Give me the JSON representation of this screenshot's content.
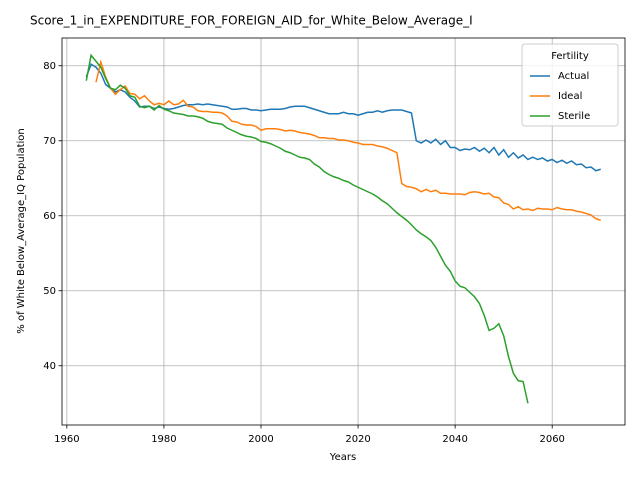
{
  "chart_data": {
    "type": "line",
    "title": "Score_1_in_EXPENDITURE_FOR_FOREIGN_AID_for_White_Below_Average_I",
    "xlabel": "Years",
    "ylabel": "% of White Below_Average_IQ Population",
    "legend_title": "Fertility",
    "legend": "upper right",
    "grid": true,
    "xlim": [
      1959,
      2075
    ],
    "ylim": [
      32.1,
      83.7
    ],
    "xticks": [
      1960,
      1980,
      2000,
      2020,
      2040,
      2060
    ],
    "yticks": [
      40,
      50,
      60,
      70,
      80
    ],
    "x": [
      1964,
      1965,
      1966,
      1967,
      1968,
      1969,
      1970,
      1971,
      1972,
      1973,
      1974,
      1975,
      1976,
      1977,
      1978,
      1979,
      1980,
      1981,
      1982,
      1983,
      1984,
      1985,
      1986,
      1987,
      1988,
      1989,
      1990,
      1991,
      1992,
      1993,
      1994,
      1995,
      1996,
      1997,
      1998,
      1999,
      2000,
      2001,
      2002,
      2003,
      2004,
      2005,
      2006,
      2007,
      2008,
      2009,
      2010,
      2011,
      2012,
      2013,
      2014,
      2015,
      2016,
      2017,
      2018,
      2019,
      2020,
      2021,
      2022,
      2023,
      2024,
      2025,
      2026,
      2027,
      2028,
      2029,
      2030,
      2031,
      2032,
      2033,
      2034,
      2035,
      2036,
      2037,
      2038,
      2039,
      2040,
      2041,
      2042,
      2043,
      2044,
      2045,
      2046,
      2047,
      2048,
      2049,
      2050,
      2051,
      2052,
      2053,
      2054,
      2055,
      2056,
      2057,
      2058,
      2059,
      2060,
      2061,
      2062,
      2063,
      2064,
      2065,
      2066,
      2067,
      2068,
      2069,
      2070
    ],
    "series": [
      {
        "name": "Actual",
        "color": "#1f77b4",
        "values": [
          78.5,
          80.2,
          79.8,
          79.0,
          77.5,
          77.0,
          76.5,
          76.8,
          76.5,
          75.8,
          75.3,
          74.5,
          74.6,
          74.6,
          74.3,
          74.5,
          74.3,
          74.2,
          74.3,
          74.5,
          74.7,
          74.8,
          74.8,
          74.9,
          74.8,
          74.9,
          74.8,
          74.7,
          74.6,
          74.5,
          74.2,
          74.2,
          74.3,
          74.3,
          74.1,
          74.1,
          74.0,
          74.1,
          74.2,
          74.2,
          74.2,
          74.3,
          74.5,
          74.6,
          74.6,
          74.6,
          74.4,
          74.2,
          74.0,
          73.8,
          73.6,
          73.6,
          73.6,
          73.8,
          73.6,
          73.6,
          73.4,
          73.6,
          73.8,
          73.8,
          74.0,
          73.8,
          74.0,
          74.1,
          74.1,
          74.1,
          73.9,
          73.7,
          70.0,
          69.7,
          70.1,
          69.7,
          70.2,
          69.5,
          70.0,
          69.1,
          69.1,
          68.7,
          68.9,
          68.8,
          69.1,
          68.6,
          69.0,
          68.4,
          69.1,
          68.1,
          68.8,
          67.8,
          68.4,
          67.7,
          68.1,
          67.5,
          67.8,
          67.5,
          67.7,
          67.3,
          67.5,
          67.1,
          67.4,
          67.0,
          67.3,
          66.8,
          66.9,
          66.4,
          66.5,
          66.0,
          66.2
        ]
      },
      {
        "name": "Ideal",
        "color": "#ff7f0e",
        "values": [
          null,
          null,
          77.8,
          80.5,
          78.5,
          77.0,
          76.2,
          76.8,
          77.3,
          76.3,
          76.2,
          75.6,
          76.0,
          75.3,
          74.8,
          75.0,
          74.8,
          75.3,
          74.8,
          74.9,
          75.4,
          74.6,
          74.5,
          74.0,
          73.9,
          73.9,
          73.8,
          73.8,
          73.7,
          73.3,
          72.6,
          72.5,
          72.2,
          72.1,
          72.1,
          71.9,
          71.4,
          71.6,
          71.6,
          71.6,
          71.5,
          71.3,
          71.4,
          71.3,
          71.1,
          71.0,
          70.9,
          70.7,
          70.4,
          70.4,
          70.3,
          70.3,
          70.1,
          70.1,
          70.0,
          69.8,
          69.7,
          69.5,
          69.5,
          69.5,
          69.3,
          69.2,
          69.0,
          68.7,
          68.4,
          64.3,
          63.9,
          63.8,
          63.6,
          63.2,
          63.5,
          63.2,
          63.4,
          63.0,
          63.0,
          62.9,
          62.9,
          62.9,
          62.8,
          63.1,
          63.2,
          63.1,
          62.9,
          63.0,
          62.5,
          62.4,
          61.7,
          61.5,
          60.9,
          61.2,
          60.8,
          60.9,
          60.7,
          61.0,
          60.9,
          60.9,
          60.8,
          61.1,
          60.9,
          60.8,
          60.8,
          60.6,
          60.5,
          60.3,
          60.1,
          59.6,
          59.4
        ]
      },
      {
        "name": "Sterile",
        "color": "#2ca02c",
        "values": [
          78.0,
          81.4,
          80.6,
          79.8,
          78.3,
          77.0,
          76.8,
          77.4,
          77.0,
          76.0,
          75.8,
          74.6,
          74.4,
          74.6,
          74.1,
          74.7,
          74.2,
          74.0,
          73.7,
          73.6,
          73.5,
          73.3,
          73.3,
          73.2,
          73.0,
          72.6,
          72.4,
          72.3,
          72.2,
          71.7,
          71.4,
          71.1,
          70.8,
          70.6,
          70.5,
          70.3,
          69.9,
          69.8,
          69.6,
          69.3,
          69.0,
          68.6,
          68.4,
          68.1,
          67.8,
          67.7,
          67.5,
          66.9,
          66.5,
          65.9,
          65.5,
          65.2,
          65.0,
          64.7,
          64.5,
          64.1,
          63.8,
          63.5,
          63.2,
          62.9,
          62.5,
          62.0,
          61.6,
          61.0,
          60.4,
          59.9,
          59.4,
          58.8,
          58.1,
          57.6,
          57.2,
          56.7,
          55.8,
          54.6,
          53.4,
          52.6,
          51.3,
          50.6,
          50.4,
          49.8,
          49.2,
          48.3,
          46.7,
          44.7,
          45.0,
          45.6,
          44.0,
          41.2,
          39.0,
          38.0,
          37.9,
          35.0,
          null,
          null,
          null,
          null,
          null,
          null,
          null,
          null,
          null,
          null,
          null,
          null,
          null,
          null,
          null
        ]
      }
    ]
  }
}
